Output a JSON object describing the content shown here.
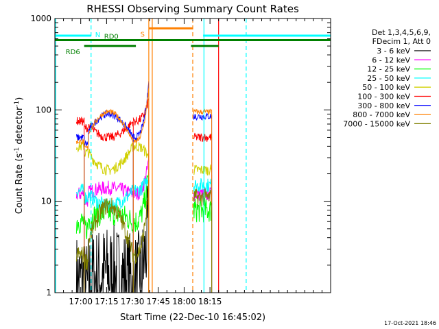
{
  "chart_data": {
    "type": "line",
    "title": "RHESSI Observing Summary Count Rates",
    "xlabel": "Start Time (22-Dec-10 16:45:02)",
    "ylabel": "Count Rate (s",
    "ylabel_sup1": "-1",
    "ylabel_mid": " detector",
    "ylabel_sup2": "-1",
    "ylabel_end": ")",
    "yscale": "log",
    "ylim": [
      1,
      1000
    ],
    "xlim_min": [
      45,
      205
    ],
    "xticks": [
      {
        "min": 60,
        "label": "17:00"
      },
      {
        "min": 75,
        "label": "17:15"
      },
      {
        "min": 90,
        "label": "17:30"
      },
      {
        "min": 105,
        "label": "17:45"
      },
      {
        "min": 120,
        "label": "18:00"
      },
      {
        "min": 135,
        "label": "18:15"
      }
    ],
    "yticks": [
      {
        "value": 1,
        "label": "1"
      },
      {
        "value": 10,
        "label": "10"
      },
      {
        "value": 100,
        "label": "100"
      },
      {
        "value": 1000,
        "label": "1000"
      }
    ],
    "legend_header": [
      "Det 1,3,4,5,6,9,",
      "FDecim 1, Att 0"
    ],
    "legend_position": "right",
    "series": [
      {
        "name": "3 - 6 keV",
        "color": "#000000",
        "base": 1.3,
        "peak": 1.6,
        "flare": 6,
        "post": 0,
        "noise": 0.55
      },
      {
        "name": "6 - 12 keV",
        "color": "#ff00ff",
        "base": 12,
        "peak": 14,
        "flare": 28,
        "post": 12,
        "noise": 0.08
      },
      {
        "name": "12 - 25 keV",
        "color": "#00ff00",
        "base": 6,
        "peak": 7.5,
        "flare": 22,
        "post": 8,
        "noise": 0.14
      },
      {
        "name": "25 - 50 keV",
        "color": "#00ffff",
        "base": 13,
        "peak": 9,
        "flare": 20,
        "post": 15,
        "noise": 0.08
      },
      {
        "name": "50 - 100 keV",
        "color": "#d0d000",
        "base": 40,
        "peak": 22,
        "flare": 30,
        "post": 22,
        "noise": 0.06
      },
      {
        "name": "100 - 300 keV",
        "color": "#ff0000",
        "base": 75,
        "peak": 50,
        "flare": 130,
        "post": 50,
        "noise": 0.05
      },
      {
        "name": "300 - 800 keV",
        "color": "#0000ff",
        "base": 50,
        "peak": 90,
        "flare": 200,
        "post": 85,
        "noise": 0.04
      },
      {
        "name": "800 - 7000 keV",
        "color": "#ff8000",
        "base": 45,
        "peak": 95,
        "flare": 180,
        "post": 95,
        "noise": 0.03
      },
      {
        "name": "7000 - 15000 keV",
        "color": "#808000",
        "base": 2.6,
        "peak": 9,
        "flare": 16,
        "post": 11,
        "noise": 0.1
      }
    ],
    "segments": [
      {
        "start": 57.5,
        "end": 62,
        "baseline": "flat"
      },
      {
        "start": 62,
        "end": 90.5,
        "baseline": "arc"
      },
      {
        "start": 90.5,
        "end": 99.5,
        "baseline": "rise"
      },
      {
        "start": 125.5,
        "end": 136,
        "baseline": "post"
      }
    ],
    "flags": [
      {
        "label": "N",
        "color": "#00ffff",
        "level": 650,
        "x1": 45,
        "x2": 66,
        "label_at": 66,
        "label_side": "right"
      },
      {
        "label": "",
        "color": "#00ffff",
        "level": 650,
        "x1": 131,
        "x2": 205
      },
      {
        "label": "RD0",
        "color": "#008000",
        "level": 580,
        "x1": 45,
        "x2": 205,
        "label_at": 68,
        "label_side": "above"
      },
      {
        "label": "RD6",
        "color": "#008000",
        "level": 500,
        "x1": 62,
        "x2": 92,
        "label_at": 62,
        "label_side": "left"
      },
      {
        "label": "",
        "color": "#008000",
        "level": 500,
        "x1": 124,
        "x2": 140
      },
      {
        "label": "S",
        "color": "#ff8000",
        "level": 780,
        "x1": 99.5,
        "x2": 125,
        "label_at": 99.5,
        "label_side": "left"
      }
    ],
    "vlines": [
      {
        "min": 45.5,
        "color": "#00ffff",
        "dashed": false
      },
      {
        "min": 66,
        "color": "#00ffff",
        "dashed": true
      },
      {
        "min": 99.5,
        "color": "#ff8000",
        "dashed": false
      },
      {
        "min": 101.5,
        "color": "#ff8000",
        "dashed": false
      },
      {
        "min": 125,
        "color": "#ff8000",
        "dashed": true
      },
      {
        "min": 131.5,
        "color": "#00ffff",
        "dashed": false
      },
      {
        "min": 140,
        "color": "#ff0000",
        "dashed": false
      },
      {
        "min": 156,
        "color": "#00ffff",
        "dashed": true
      }
    ],
    "footer_timestamp": "17-Oct-2021 18:46"
  }
}
